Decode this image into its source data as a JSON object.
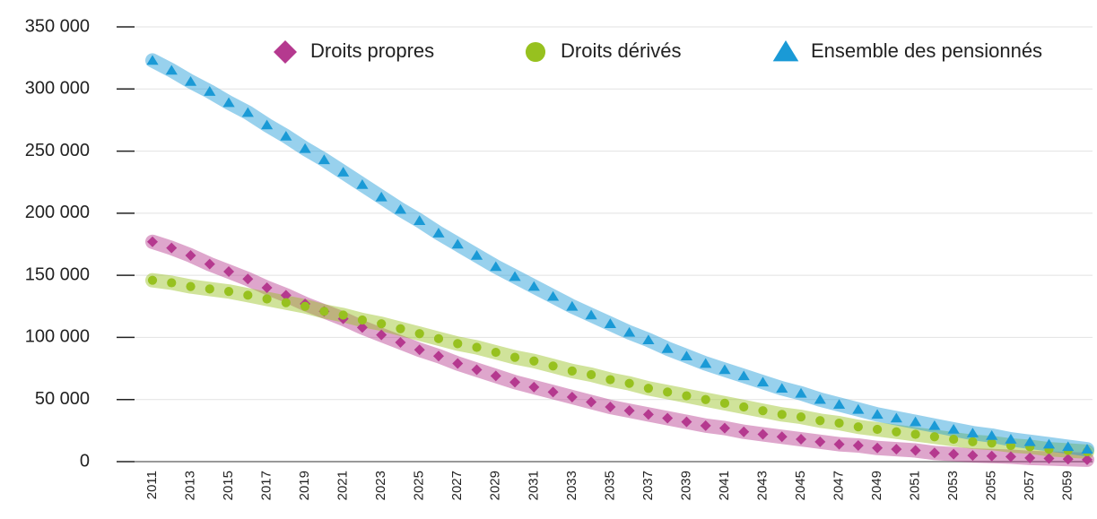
{
  "chart_data": {
    "type": "line",
    "categories": [
      "2011",
      null,
      "2013",
      null,
      "2015",
      null,
      "2017",
      null,
      "2019",
      null,
      "2021",
      null,
      "2023",
      null,
      "2025",
      null,
      "2027",
      null,
      "2029",
      null,
      "2031",
      null,
      "2033",
      null,
      "2035",
      null,
      "2037",
      null,
      "2039",
      null,
      "2041",
      null,
      "2043",
      null,
      "2045",
      null,
      "2047",
      null,
      "2049",
      null,
      "2051",
      null,
      "2053",
      null,
      "2055",
      null,
      "2057",
      null,
      "2059",
      null
    ],
    "series": [
      {
        "name": "Droits propres",
        "color": "#b5398f",
        "marker": "diamond",
        "values": [
          177000,
          172000,
          166000,
          159000,
          153000,
          147000,
          140000,
          134000,
          127000,
          121000,
          115000,
          108000,
          102000,
          96000,
          90000,
          85000,
          79000,
          74000,
          69000,
          64000,
          60000,
          56000,
          52000,
          48000,
          44000,
          41000,
          38000,
          35000,
          32000,
          29000,
          27000,
          24000,
          22000,
          20000,
          18000,
          16000,
          14000,
          13000,
          11000,
          10000,
          9000,
          7000,
          6000,
          5000,
          4500,
          4000,
          3000,
          2500,
          2000,
          1500
        ]
      },
      {
        "name": "Droits dérivés",
        "color": "#97c11f",
        "marker": "circle",
        "values": [
          146000,
          144000,
          141000,
          139000,
          137000,
          134000,
          131000,
          128000,
          125000,
          121000,
          118000,
          114000,
          111000,
          107000,
          103000,
          99000,
          95000,
          92000,
          88000,
          84000,
          81000,
          77000,
          73000,
          70000,
          66000,
          63000,
          59000,
          56000,
          53000,
          50000,
          47000,
          44000,
          41000,
          38000,
          36000,
          33000,
          31000,
          28000,
          26000,
          24000,
          22000,
          20000,
          18000,
          16000,
          15000,
          13000,
          12000,
          10000,
          9000,
          8000
        ]
      },
      {
        "name": "Ensemble des pensionnés",
        "color": "#1a9ad6",
        "marker": "triangle",
        "values": [
          323000,
          315000,
          306000,
          298000,
          289000,
          281000,
          271000,
          262000,
          252000,
          243000,
          233000,
          223000,
          213000,
          203000,
          194000,
          184000,
          175000,
          166000,
          157000,
          149000,
          141000,
          133000,
          125000,
          118000,
          111000,
          104000,
          98000,
          91000,
          85000,
          79000,
          74000,
          69000,
          64000,
          59000,
          55000,
          50000,
          46000,
          42000,
          38000,
          35000,
          32000,
          29000,
          26000,
          23000,
          21000,
          18000,
          16000,
          14000,
          12000,
          10000
        ]
      }
    ],
    "ylim": [
      0,
      350000
    ],
    "yticks": [
      {
        "value": 0,
        "label": "0"
      },
      {
        "value": 50000,
        "label": "50 000"
      },
      {
        "value": 100000,
        "label": "100 000"
      },
      {
        "value": 150000,
        "label": "150 000"
      },
      {
        "value": 200000,
        "label": "200 000"
      },
      {
        "value": 250000,
        "label": "250 000"
      },
      {
        "value": 300000,
        "label": "300 000"
      },
      {
        "value": 350000,
        "label": "350 000"
      }
    ],
    "grid": true,
    "legend": "top"
  }
}
